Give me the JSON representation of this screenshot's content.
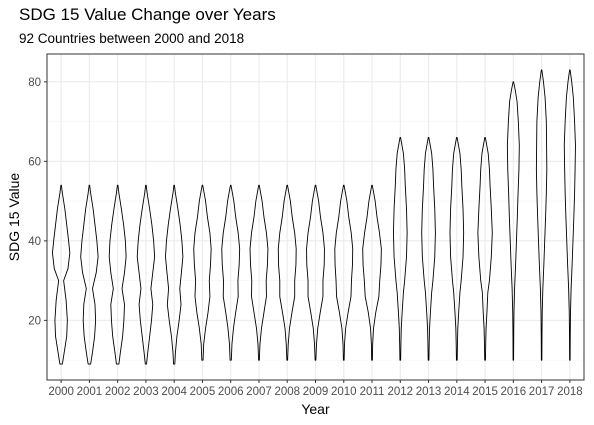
{
  "chart_data": {
    "type": "violin",
    "title": "SDG 15 Value Change over Years",
    "subtitle": "92 Countries between 2000 and 2018",
    "xlabel": "Year",
    "ylabel": "SDG 15 Value",
    "ylim": [
      5,
      87
    ],
    "yticks": [
      20,
      40,
      60,
      80
    ],
    "grid": true,
    "legend": "none",
    "categories": [
      "2000",
      "2001",
      "2002",
      "2003",
      "2004",
      "2005",
      "2006",
      "2007",
      "2008",
      "2009",
      "2010",
      "2011",
      "2012",
      "2013",
      "2014",
      "2015",
      "2016",
      "2017",
      "2018"
    ],
    "violins": [
      {
        "year": "2000",
        "min": 9,
        "max": 54,
        "profile": [
          [
            9,
            0.1
          ],
          [
            12,
            0.25
          ],
          [
            16,
            0.45
          ],
          [
            20,
            0.5
          ],
          [
            25,
            0.4
          ],
          [
            30,
            0.2
          ],
          [
            33,
            0.55
          ],
          [
            37,
            0.7
          ],
          [
            40,
            0.6
          ],
          [
            44,
            0.45
          ],
          [
            48,
            0.3
          ],
          [
            52,
            0.1
          ],
          [
            54,
            0.02
          ]
        ]
      },
      {
        "year": "2001",
        "min": 9,
        "max": 54,
        "profile": [
          [
            9,
            0.1
          ],
          [
            12,
            0.25
          ],
          [
            16,
            0.42
          ],
          [
            20,
            0.5
          ],
          [
            24,
            0.45
          ],
          [
            28,
            0.25
          ],
          [
            32,
            0.55
          ],
          [
            36,
            0.7
          ],
          [
            40,
            0.6
          ],
          [
            44,
            0.45
          ],
          [
            48,
            0.3
          ],
          [
            52,
            0.1
          ],
          [
            54,
            0.02
          ]
        ]
      },
      {
        "year": "2002",
        "min": 9,
        "max": 54,
        "profile": [
          [
            9,
            0.1
          ],
          [
            12,
            0.22
          ],
          [
            16,
            0.4
          ],
          [
            20,
            0.5
          ],
          [
            24,
            0.55
          ],
          [
            28,
            0.35
          ],
          [
            32,
            0.55
          ],
          [
            36,
            0.68
          ],
          [
            40,
            0.62
          ],
          [
            44,
            0.48
          ],
          [
            48,
            0.3
          ],
          [
            52,
            0.1
          ],
          [
            54,
            0.02
          ]
        ]
      },
      {
        "year": "2003",
        "min": 9,
        "max": 54,
        "profile": [
          [
            9,
            0.05
          ],
          [
            12,
            0.15
          ],
          [
            16,
            0.3
          ],
          [
            20,
            0.45
          ],
          [
            24,
            0.55
          ],
          [
            28,
            0.4
          ],
          [
            32,
            0.55
          ],
          [
            36,
            0.7
          ],
          [
            40,
            0.62
          ],
          [
            44,
            0.48
          ],
          [
            48,
            0.3
          ],
          [
            52,
            0.1
          ],
          [
            54,
            0.02
          ]
        ]
      },
      {
        "year": "2004",
        "min": 9,
        "max": 54,
        "profile": [
          [
            9,
            0.05
          ],
          [
            12,
            0.1
          ],
          [
            16,
            0.22
          ],
          [
            20,
            0.4
          ],
          [
            24,
            0.55
          ],
          [
            28,
            0.45
          ],
          [
            32,
            0.58
          ],
          [
            36,
            0.7
          ],
          [
            40,
            0.62
          ],
          [
            44,
            0.48
          ],
          [
            48,
            0.3
          ],
          [
            52,
            0.1
          ],
          [
            54,
            0.02
          ]
        ]
      },
      {
        "year": "2005",
        "min": 10,
        "max": 54,
        "profile": [
          [
            10,
            0.05
          ],
          [
            14,
            0.1
          ],
          [
            18,
            0.25
          ],
          [
            22,
            0.45
          ],
          [
            26,
            0.6
          ],
          [
            30,
            0.55
          ],
          [
            34,
            0.65
          ],
          [
            38,
            0.7
          ],
          [
            42,
            0.6
          ],
          [
            46,
            0.4
          ],
          [
            50,
            0.25
          ],
          [
            53,
            0.08
          ],
          [
            54,
            0.02
          ]
        ]
      },
      {
        "year": "2006",
        "min": 10,
        "max": 54,
        "profile": [
          [
            10,
            0.05
          ],
          [
            14,
            0.1
          ],
          [
            18,
            0.22
          ],
          [
            22,
            0.4
          ],
          [
            26,
            0.6
          ],
          [
            30,
            0.58
          ],
          [
            34,
            0.68
          ],
          [
            38,
            0.72
          ],
          [
            42,
            0.6
          ],
          [
            46,
            0.4
          ],
          [
            50,
            0.25
          ],
          [
            53,
            0.08
          ],
          [
            54,
            0.02
          ]
        ]
      },
      {
        "year": "2007",
        "min": 10,
        "max": 54,
        "profile": [
          [
            10,
            0.03
          ],
          [
            14,
            0.08
          ],
          [
            18,
            0.2
          ],
          [
            22,
            0.4
          ],
          [
            26,
            0.6
          ],
          [
            30,
            0.58
          ],
          [
            34,
            0.68
          ],
          [
            38,
            0.72
          ],
          [
            42,
            0.6
          ],
          [
            46,
            0.4
          ],
          [
            50,
            0.25
          ],
          [
            53,
            0.08
          ],
          [
            54,
            0.02
          ]
        ]
      },
      {
        "year": "2008",
        "min": 10,
        "max": 54,
        "profile": [
          [
            10,
            0.03
          ],
          [
            14,
            0.08
          ],
          [
            18,
            0.18
          ],
          [
            22,
            0.38
          ],
          [
            26,
            0.6
          ],
          [
            30,
            0.6
          ],
          [
            34,
            0.7
          ],
          [
            38,
            0.72
          ],
          [
            42,
            0.6
          ],
          [
            46,
            0.4
          ],
          [
            50,
            0.25
          ],
          [
            53,
            0.08
          ],
          [
            54,
            0.02
          ]
        ]
      },
      {
        "year": "2009",
        "min": 10,
        "max": 54,
        "profile": [
          [
            10,
            0.03
          ],
          [
            14,
            0.08
          ],
          [
            18,
            0.18
          ],
          [
            22,
            0.38
          ],
          [
            26,
            0.6
          ],
          [
            30,
            0.6
          ],
          [
            34,
            0.7
          ],
          [
            38,
            0.72
          ],
          [
            42,
            0.6
          ],
          [
            46,
            0.4
          ],
          [
            50,
            0.25
          ],
          [
            53,
            0.08
          ],
          [
            54,
            0.02
          ]
        ]
      },
      {
        "year": "2010",
        "min": 10,
        "max": 54,
        "profile": [
          [
            10,
            0.03
          ],
          [
            14,
            0.06
          ],
          [
            18,
            0.15
          ],
          [
            22,
            0.35
          ],
          [
            26,
            0.58
          ],
          [
            30,
            0.62
          ],
          [
            34,
            0.7
          ],
          [
            38,
            0.72
          ],
          [
            42,
            0.6
          ],
          [
            46,
            0.4
          ],
          [
            50,
            0.25
          ],
          [
            53,
            0.08
          ],
          [
            54,
            0.02
          ]
        ]
      },
      {
        "year": "2011",
        "min": 10,
        "max": 54,
        "profile": [
          [
            10,
            0.03
          ],
          [
            14,
            0.05
          ],
          [
            18,
            0.12
          ],
          [
            22,
            0.3
          ],
          [
            26,
            0.55
          ],
          [
            30,
            0.62
          ],
          [
            34,
            0.72
          ],
          [
            38,
            0.75
          ],
          [
            42,
            0.6
          ],
          [
            46,
            0.4
          ],
          [
            50,
            0.25
          ],
          [
            53,
            0.08
          ],
          [
            54,
            0.02
          ]
        ]
      },
      {
        "year": "2012",
        "min": 10,
        "max": 66,
        "profile": [
          [
            10,
            0.03
          ],
          [
            14,
            0.05
          ],
          [
            18,
            0.08
          ],
          [
            22,
            0.15
          ],
          [
            27,
            0.25
          ],
          [
            30,
            0.35
          ],
          [
            36,
            0.5
          ],
          [
            42,
            0.55
          ],
          [
            48,
            0.5
          ],
          [
            54,
            0.4
          ],
          [
            58,
            0.35
          ],
          [
            62,
            0.25
          ],
          [
            65,
            0.08
          ],
          [
            66,
            0.02
          ]
        ]
      },
      {
        "year": "2013",
        "min": 10,
        "max": 66,
        "profile": [
          [
            10,
            0.03
          ],
          [
            14,
            0.05
          ],
          [
            18,
            0.08
          ],
          [
            22,
            0.15
          ],
          [
            27,
            0.25
          ],
          [
            30,
            0.35
          ],
          [
            36,
            0.5
          ],
          [
            42,
            0.55
          ],
          [
            48,
            0.5
          ],
          [
            54,
            0.4
          ],
          [
            58,
            0.35
          ],
          [
            62,
            0.25
          ],
          [
            65,
            0.08
          ],
          [
            66,
            0.02
          ]
        ]
      },
      {
        "year": "2014",
        "min": 10,
        "max": 66,
        "profile": [
          [
            10,
            0.03
          ],
          [
            14,
            0.05
          ],
          [
            18,
            0.08
          ],
          [
            22,
            0.15
          ],
          [
            27,
            0.25
          ],
          [
            30,
            0.35
          ],
          [
            36,
            0.5
          ],
          [
            42,
            0.55
          ],
          [
            48,
            0.5
          ],
          [
            54,
            0.4
          ],
          [
            58,
            0.35
          ],
          [
            62,
            0.25
          ],
          [
            65,
            0.08
          ],
          [
            66,
            0.02
          ]
        ]
      },
      {
        "year": "2015",
        "min": 10,
        "max": 66,
        "profile": [
          [
            10,
            0.03
          ],
          [
            14,
            0.05
          ],
          [
            18,
            0.08
          ],
          [
            22,
            0.15
          ],
          [
            27,
            0.22
          ],
          [
            30,
            0.35
          ],
          [
            36,
            0.5
          ],
          [
            42,
            0.58
          ],
          [
            48,
            0.5
          ],
          [
            54,
            0.4
          ],
          [
            58,
            0.35
          ],
          [
            62,
            0.25
          ],
          [
            65,
            0.08
          ],
          [
            66,
            0.02
          ]
        ]
      },
      {
        "year": "2016",
        "min": 10,
        "max": 80,
        "profile": [
          [
            10,
            0.02
          ],
          [
            16,
            0.03
          ],
          [
            22,
            0.05
          ],
          [
            28,
            0.1
          ],
          [
            34,
            0.18
          ],
          [
            40,
            0.25
          ],
          [
            46,
            0.32
          ],
          [
            52,
            0.38
          ],
          [
            58,
            0.45
          ],
          [
            64,
            0.48
          ],
          [
            70,
            0.4
          ],
          [
            75,
            0.3
          ],
          [
            78,
            0.15
          ],
          [
            80,
            0.02
          ]
        ]
      },
      {
        "year": "2017",
        "min": 10,
        "max": 83,
        "profile": [
          [
            10,
            0.02
          ],
          [
            16,
            0.03
          ],
          [
            22,
            0.05
          ],
          [
            28,
            0.1
          ],
          [
            34,
            0.18
          ],
          [
            40,
            0.25
          ],
          [
            46,
            0.32
          ],
          [
            52,
            0.38
          ],
          [
            58,
            0.42
          ],
          [
            64,
            0.4
          ],
          [
            70,
            0.38
          ],
          [
            76,
            0.28
          ],
          [
            80,
            0.15
          ],
          [
            83,
            0.02
          ]
        ]
      },
      {
        "year": "2018",
        "min": 10,
        "max": 83,
        "profile": [
          [
            10,
            0.02
          ],
          [
            16,
            0.03
          ],
          [
            22,
            0.05
          ],
          [
            28,
            0.1
          ],
          [
            34,
            0.18
          ],
          [
            40,
            0.25
          ],
          [
            46,
            0.32
          ],
          [
            52,
            0.38
          ],
          [
            58,
            0.42
          ],
          [
            64,
            0.45
          ],
          [
            70,
            0.38
          ],
          [
            76,
            0.28
          ],
          [
            80,
            0.15
          ],
          [
            83,
            0.02
          ]
        ]
      }
    ]
  },
  "colors": {
    "background": "#ffffff",
    "grid_major": "#ebebeb",
    "grid_minor": "#f5f5f5",
    "panel_border": "#333333",
    "violin_outline": "#000000",
    "tick_text": "#4d4d4d"
  }
}
